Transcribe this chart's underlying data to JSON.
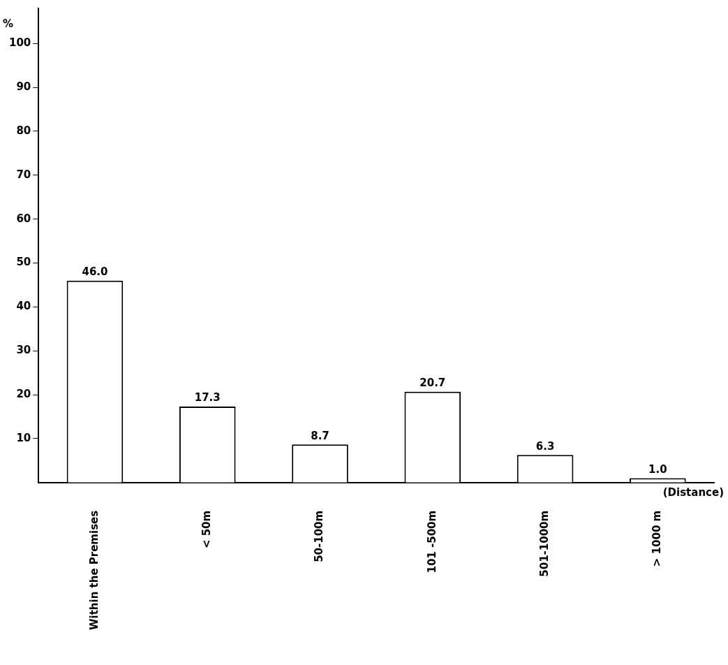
{
  "chart_data": {
    "type": "bar",
    "ylabel": "%",
    "xlabel": "(Distance)",
    "categories": [
      "Within the Premises",
      "< 50m",
      "50-100m",
      "101 -500m",
      "501-1000m",
      "> 1000 m"
    ],
    "values": [
      46.0,
      17.3,
      8.7,
      20.7,
      6.3,
      1.0
    ],
    "color": "#ffffff",
    "ylim": [
      0,
      108
    ],
    "yticks": [
      10,
      20,
      30,
      40,
      50,
      60,
      70,
      80,
      90,
      100
    ],
    "value_labels": [
      "46.0",
      "17.3",
      "8.7",
      "20.7",
      "6.3",
      "1.0"
    ],
    "grid": false,
    "legend": false
  }
}
